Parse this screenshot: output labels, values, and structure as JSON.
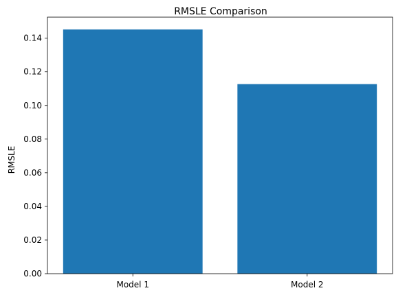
{
  "chart_data": {
    "type": "bar",
    "title": "RMSLE Comparison",
    "xlabel": "",
    "ylabel": "RMSLE",
    "categories": [
      "Model 1",
      "Model 2"
    ],
    "values": [
      0.1452,
      0.1127
    ],
    "ylim": [
      0,
      0.1525
    ],
    "yticks": [
      0.0,
      0.02,
      0.04,
      0.06,
      0.08,
      0.1,
      0.12,
      0.14
    ],
    "ytick_labels": [
      "0.00",
      "0.02",
      "0.04",
      "0.06",
      "0.08",
      "0.10",
      "0.12",
      "0.14"
    ],
    "bar_color": "#1f77b4",
    "grid": false
  }
}
